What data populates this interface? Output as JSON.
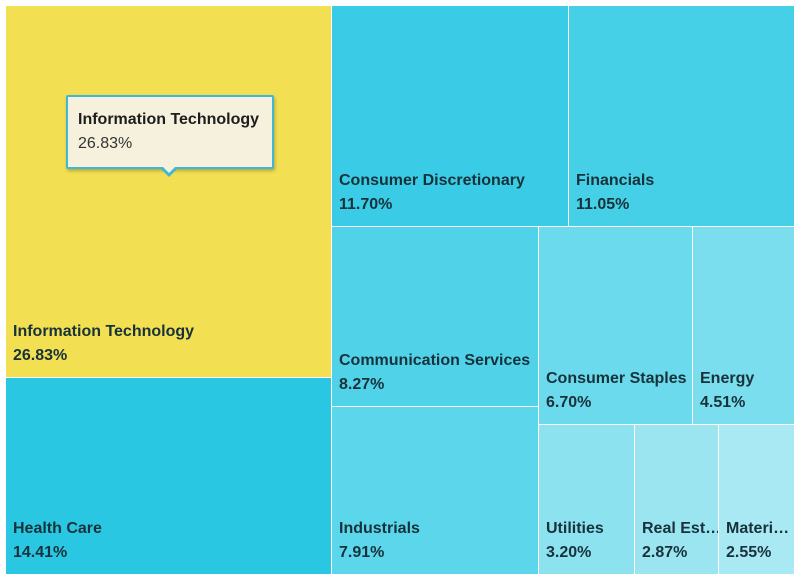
{
  "chart_data": {
    "type": "treemap",
    "unit": "%",
    "items": [
      {
        "name": "Information Technology",
        "value": 26.83,
        "label": "26.83%",
        "color": "#f3df52"
      },
      {
        "name": "Health Care",
        "value": 14.41,
        "label": "14.41%",
        "color": "#2ac7e3"
      },
      {
        "name": "Consumer Discretionary",
        "value": 11.7,
        "label": "11.70%",
        "color": "#3accE6"
      },
      {
        "name": "Financials",
        "value": 11.05,
        "label": "11.05%",
        "color": "#45d0e7"
      },
      {
        "name": "Communication Services",
        "value": 8.27,
        "label": "8.27%",
        "color": "#50d3e9"
      },
      {
        "name": "Industrials",
        "value": 7.91,
        "label": "7.91%",
        "color": "#5bd6ea"
      },
      {
        "name": "Consumer Staples",
        "value": 6.7,
        "label": "6.70%",
        "color": "#6bdaec"
      },
      {
        "name": "Energy",
        "value": 4.51,
        "label": "4.51%",
        "color": "#7bdeee"
      },
      {
        "name": "Utilities",
        "value": 3.2,
        "label": "3.20%",
        "color": "#8de2f0"
      },
      {
        "name": "Real Est…",
        "value": 2.87,
        "label": "2.87%",
        "color": "#9be5f1"
      },
      {
        "name": "Materi…",
        "value": 2.55,
        "label": "2.55%",
        "color": "#a9e9f3"
      }
    ],
    "tooltip": {
      "title": "Information Technology",
      "value": "26.83%"
    }
  }
}
